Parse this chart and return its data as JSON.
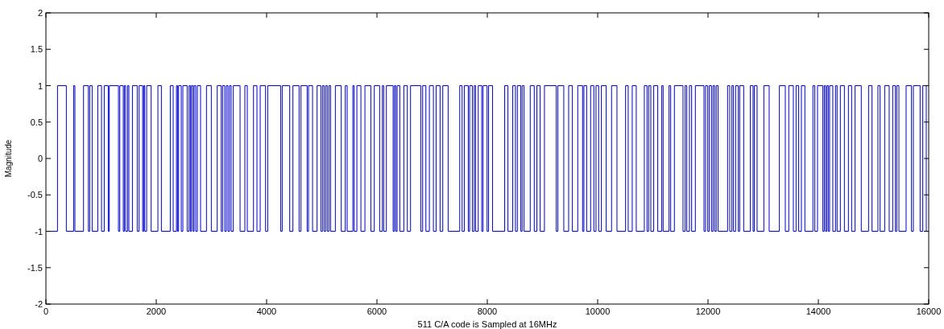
{
  "chart_data": {
    "type": "step",
    "xlabel": "511 C/A code is Sampled at 16MHz",
    "ylabel": "Magnitude",
    "xlim": [
      0,
      16000
    ],
    "xticks": [
      0,
      2000,
      4000,
      6000,
      8000,
      10000,
      12000,
      14000,
      16000
    ],
    "ylim": [
      -2,
      2
    ],
    "yticks": [
      -2,
      -1.5,
      -1,
      -0.5,
      0,
      0.5,
      1,
      1.5,
      2
    ],
    "grid": false,
    "series": [
      {
        "color": "#0000c8",
        "x": [
          0,
          210,
          370,
          502,
          526,
          682,
          770,
          794,
          838,
          940,
          1008,
          1057,
          1130,
          1149,
          1315,
          1339,
          1402,
          1422,
          1446,
          1480,
          1504,
          1568,
          1655,
          1689,
          1753,
          1772,
          1792,
          1826,
          1908,
          2030,
          2093,
          2254,
          2307,
          2366,
          2385,
          2405,
          2453,
          2482,
          2560,
          2594,
          2618,
          2638,
          2667,
          2686,
          2716,
          2745,
          2803,
          2910,
          2998,
          3105,
          3178,
          3202,
          3241,
          3270,
          3300,
          3329,
          3358,
          3397,
          3519,
          3606,
          3650,
          3762,
          3825,
          3884,
          3981,
          4020,
          4254,
          4283,
          4419,
          4477,
          4589,
          4623,
          4735,
          4760,
          4833,
          4915,
          4984,
          5013,
          5042,
          5071,
          5100,
          5130,
          5159,
          5246,
          5353,
          5426,
          5460,
          5563,
          5587,
          5636,
          5709,
          5782,
          5889,
          5952,
          6049,
          6098,
          6122,
          6171,
          6293,
          6317,
          6341,
          6366,
          6414,
          6487,
          6551,
          6609,
          6794,
          6828,
          6887,
          6950,
          7023,
          7072,
          7144,
          7193,
          7290,
          7500,
          7544,
          7583,
          7656,
          7680,
          7729,
          7763,
          7787,
          7836,
          7899,
          7923,
          7996,
          8023,
          8096,
          8315,
          8374,
          8461,
          8510,
          8544,
          8607,
          8632,
          8666,
          8778,
          8851,
          8899,
          8958,
          9036,
          9250,
          9279,
          9386,
          9474,
          9542,
          9639,
          9727,
          9751,
          9800,
          9873,
          9931,
          9970,
          10019,
          10067,
          10155,
          10252,
          10350,
          10506,
          10554,
          10627,
          10700,
          10846,
          10895,
          10924,
          10963,
          11016,
          11089,
          11162,
          11187,
          11294,
          11323,
          11391,
          11547,
          11586,
          11615,
          11664,
          11703,
          11771,
          11927,
          11956,
          11995,
          12024,
          12063,
          12092,
          12121,
          12150,
          12184,
          12355,
          12394,
          12433,
          12462,
          12501,
          12549,
          12574,
          12647,
          12768,
          12817,
          12841,
          12890,
          13012,
          13109,
          13294,
          13401,
          13464,
          13547,
          13596,
          13644,
          13693,
          13756,
          13902,
          13936,
          13985,
          14082,
          14107,
          14131,
          14155,
          14180,
          14204,
          14262,
          14311,
          14340,
          14399,
          14472,
          14545,
          14603,
          14666,
          14778,
          14910,
          14973,
          15080,
          15119,
          15202,
          15284,
          15348,
          15396,
          15421,
          15460,
          15591,
          15688,
          15722,
          15844,
          15893,
          15956,
          16000
        ],
        "values": [
          -1,
          1,
          -1,
          1,
          -1,
          1,
          -1,
          1,
          -1,
          1,
          -1,
          1,
          -1,
          1,
          -1,
          1,
          -1,
          1,
          -1,
          1,
          -1,
          1,
          -1,
          1,
          -1,
          1,
          -1,
          1,
          -1,
          1,
          -1,
          1,
          -1,
          1,
          -1,
          1,
          -1,
          1,
          -1,
          1,
          -1,
          1,
          -1,
          1,
          -1,
          1,
          -1,
          1,
          -1,
          1,
          -1,
          1,
          -1,
          1,
          -1,
          1,
          -1,
          1,
          -1,
          1,
          -1,
          1,
          -1,
          1,
          -1,
          1,
          -1,
          1,
          -1,
          1,
          -1,
          1,
          -1,
          1,
          -1,
          1,
          -1,
          1,
          -1,
          1,
          -1,
          1,
          -1,
          1,
          -1,
          1,
          -1,
          1,
          -1,
          1,
          -1,
          1,
          -1,
          1,
          -1,
          1,
          -1,
          1,
          -1,
          1,
          -1,
          1,
          -1,
          1,
          -1,
          1,
          -1,
          1,
          -1,
          1,
          -1,
          1,
          -1,
          1,
          -1,
          1,
          -1,
          1,
          -1,
          1,
          -1,
          1,
          -1,
          1,
          -1,
          1,
          -1,
          1,
          -1,
          1,
          -1,
          1,
          -1,
          1,
          -1,
          1,
          -1,
          1,
          -1,
          1,
          -1,
          1,
          -1,
          1,
          -1,
          1,
          -1,
          1,
          -1,
          1,
          -1,
          1,
          -1,
          1,
          -1,
          1,
          -1,
          1,
          -1,
          1,
          -1,
          1,
          -1,
          1,
          -1,
          1,
          -1,
          1,
          -1,
          1,
          -1,
          1,
          -1,
          1,
          -1,
          1,
          -1,
          1,
          -1,
          1,
          -1,
          1,
          -1,
          1,
          -1,
          1,
          -1,
          1,
          -1,
          1,
          -1,
          1,
          -1,
          1,
          -1,
          1,
          -1,
          1,
          -1,
          1,
          -1,
          1,
          -1,
          1,
          -1,
          1,
          -1,
          1,
          -1,
          1,
          -1,
          1,
          -1,
          1,
          -1,
          1,
          -1,
          1,
          -1,
          1,
          -1,
          1,
          -1,
          1,
          -1,
          1,
          -1,
          1,
          -1,
          1,
          -1,
          1,
          -1,
          1,
          -1,
          1,
          -1,
          1,
          -1,
          1,
          -1,
          1,
          -1,
          1,
          -1,
          -1
        ]
      }
    ]
  }
}
